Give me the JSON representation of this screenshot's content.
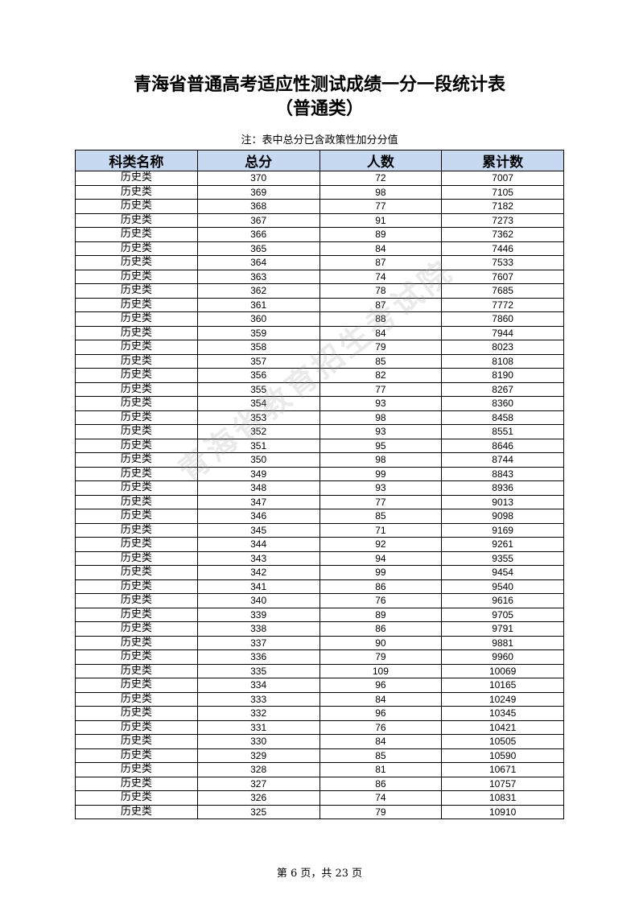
{
  "title": "青海省普通高考适应性测试成绩一分一段统计表",
  "subtitle": "（普通类）",
  "note": "注：表中总分已含政策性加分分值",
  "watermark": "青海省教育招生考试院",
  "table": {
    "headers": [
      "科类名称",
      "总分",
      "人数",
      "累计数"
    ],
    "rows": [
      [
        "历史类",
        "370",
        "72",
        "7007"
      ],
      [
        "历史类",
        "369",
        "98",
        "7105"
      ],
      [
        "历史类",
        "368",
        "77",
        "7182"
      ],
      [
        "历史类",
        "367",
        "91",
        "7273"
      ],
      [
        "历史类",
        "366",
        "89",
        "7362"
      ],
      [
        "历史类",
        "365",
        "84",
        "7446"
      ],
      [
        "历史类",
        "364",
        "87",
        "7533"
      ],
      [
        "历史类",
        "363",
        "74",
        "7607"
      ],
      [
        "历史类",
        "362",
        "78",
        "7685"
      ],
      [
        "历史类",
        "361",
        "87",
        "7772"
      ],
      [
        "历史类",
        "360",
        "88",
        "7860"
      ],
      [
        "历史类",
        "359",
        "84",
        "7944"
      ],
      [
        "历史类",
        "358",
        "79",
        "8023"
      ],
      [
        "历史类",
        "357",
        "85",
        "8108"
      ],
      [
        "历史类",
        "356",
        "82",
        "8190"
      ],
      [
        "历史类",
        "355",
        "77",
        "8267"
      ],
      [
        "历史类",
        "354",
        "93",
        "8360"
      ],
      [
        "历史类",
        "353",
        "98",
        "8458"
      ],
      [
        "历史类",
        "352",
        "93",
        "8551"
      ],
      [
        "历史类",
        "351",
        "95",
        "8646"
      ],
      [
        "历史类",
        "350",
        "98",
        "8744"
      ],
      [
        "历史类",
        "349",
        "99",
        "8843"
      ],
      [
        "历史类",
        "348",
        "93",
        "8936"
      ],
      [
        "历史类",
        "347",
        "77",
        "9013"
      ],
      [
        "历史类",
        "346",
        "85",
        "9098"
      ],
      [
        "历史类",
        "345",
        "71",
        "9169"
      ],
      [
        "历史类",
        "344",
        "92",
        "9261"
      ],
      [
        "历史类",
        "343",
        "94",
        "9355"
      ],
      [
        "历史类",
        "342",
        "99",
        "9454"
      ],
      [
        "历史类",
        "341",
        "86",
        "9540"
      ],
      [
        "历史类",
        "340",
        "76",
        "9616"
      ],
      [
        "历史类",
        "339",
        "89",
        "9705"
      ],
      [
        "历史类",
        "338",
        "86",
        "9791"
      ],
      [
        "历史类",
        "337",
        "90",
        "9881"
      ],
      [
        "历史类",
        "336",
        "79",
        "9960"
      ],
      [
        "历史类",
        "335",
        "109",
        "10069"
      ],
      [
        "历史类",
        "334",
        "96",
        "10165"
      ],
      [
        "历史类",
        "333",
        "84",
        "10249"
      ],
      [
        "历史类",
        "332",
        "96",
        "10345"
      ],
      [
        "历史类",
        "331",
        "76",
        "10421"
      ],
      [
        "历史类",
        "330",
        "84",
        "10505"
      ],
      [
        "历史类",
        "329",
        "85",
        "10590"
      ],
      [
        "历史类",
        "328",
        "81",
        "10671"
      ],
      [
        "历史类",
        "327",
        "86",
        "10757"
      ],
      [
        "历史类",
        "326",
        "74",
        "10831"
      ],
      [
        "历史类",
        "325",
        "79",
        "10910"
      ]
    ]
  },
  "footer": "第 6 页，共 23 页",
  "colors": {
    "header_bg": "#c6d9f1"
  }
}
